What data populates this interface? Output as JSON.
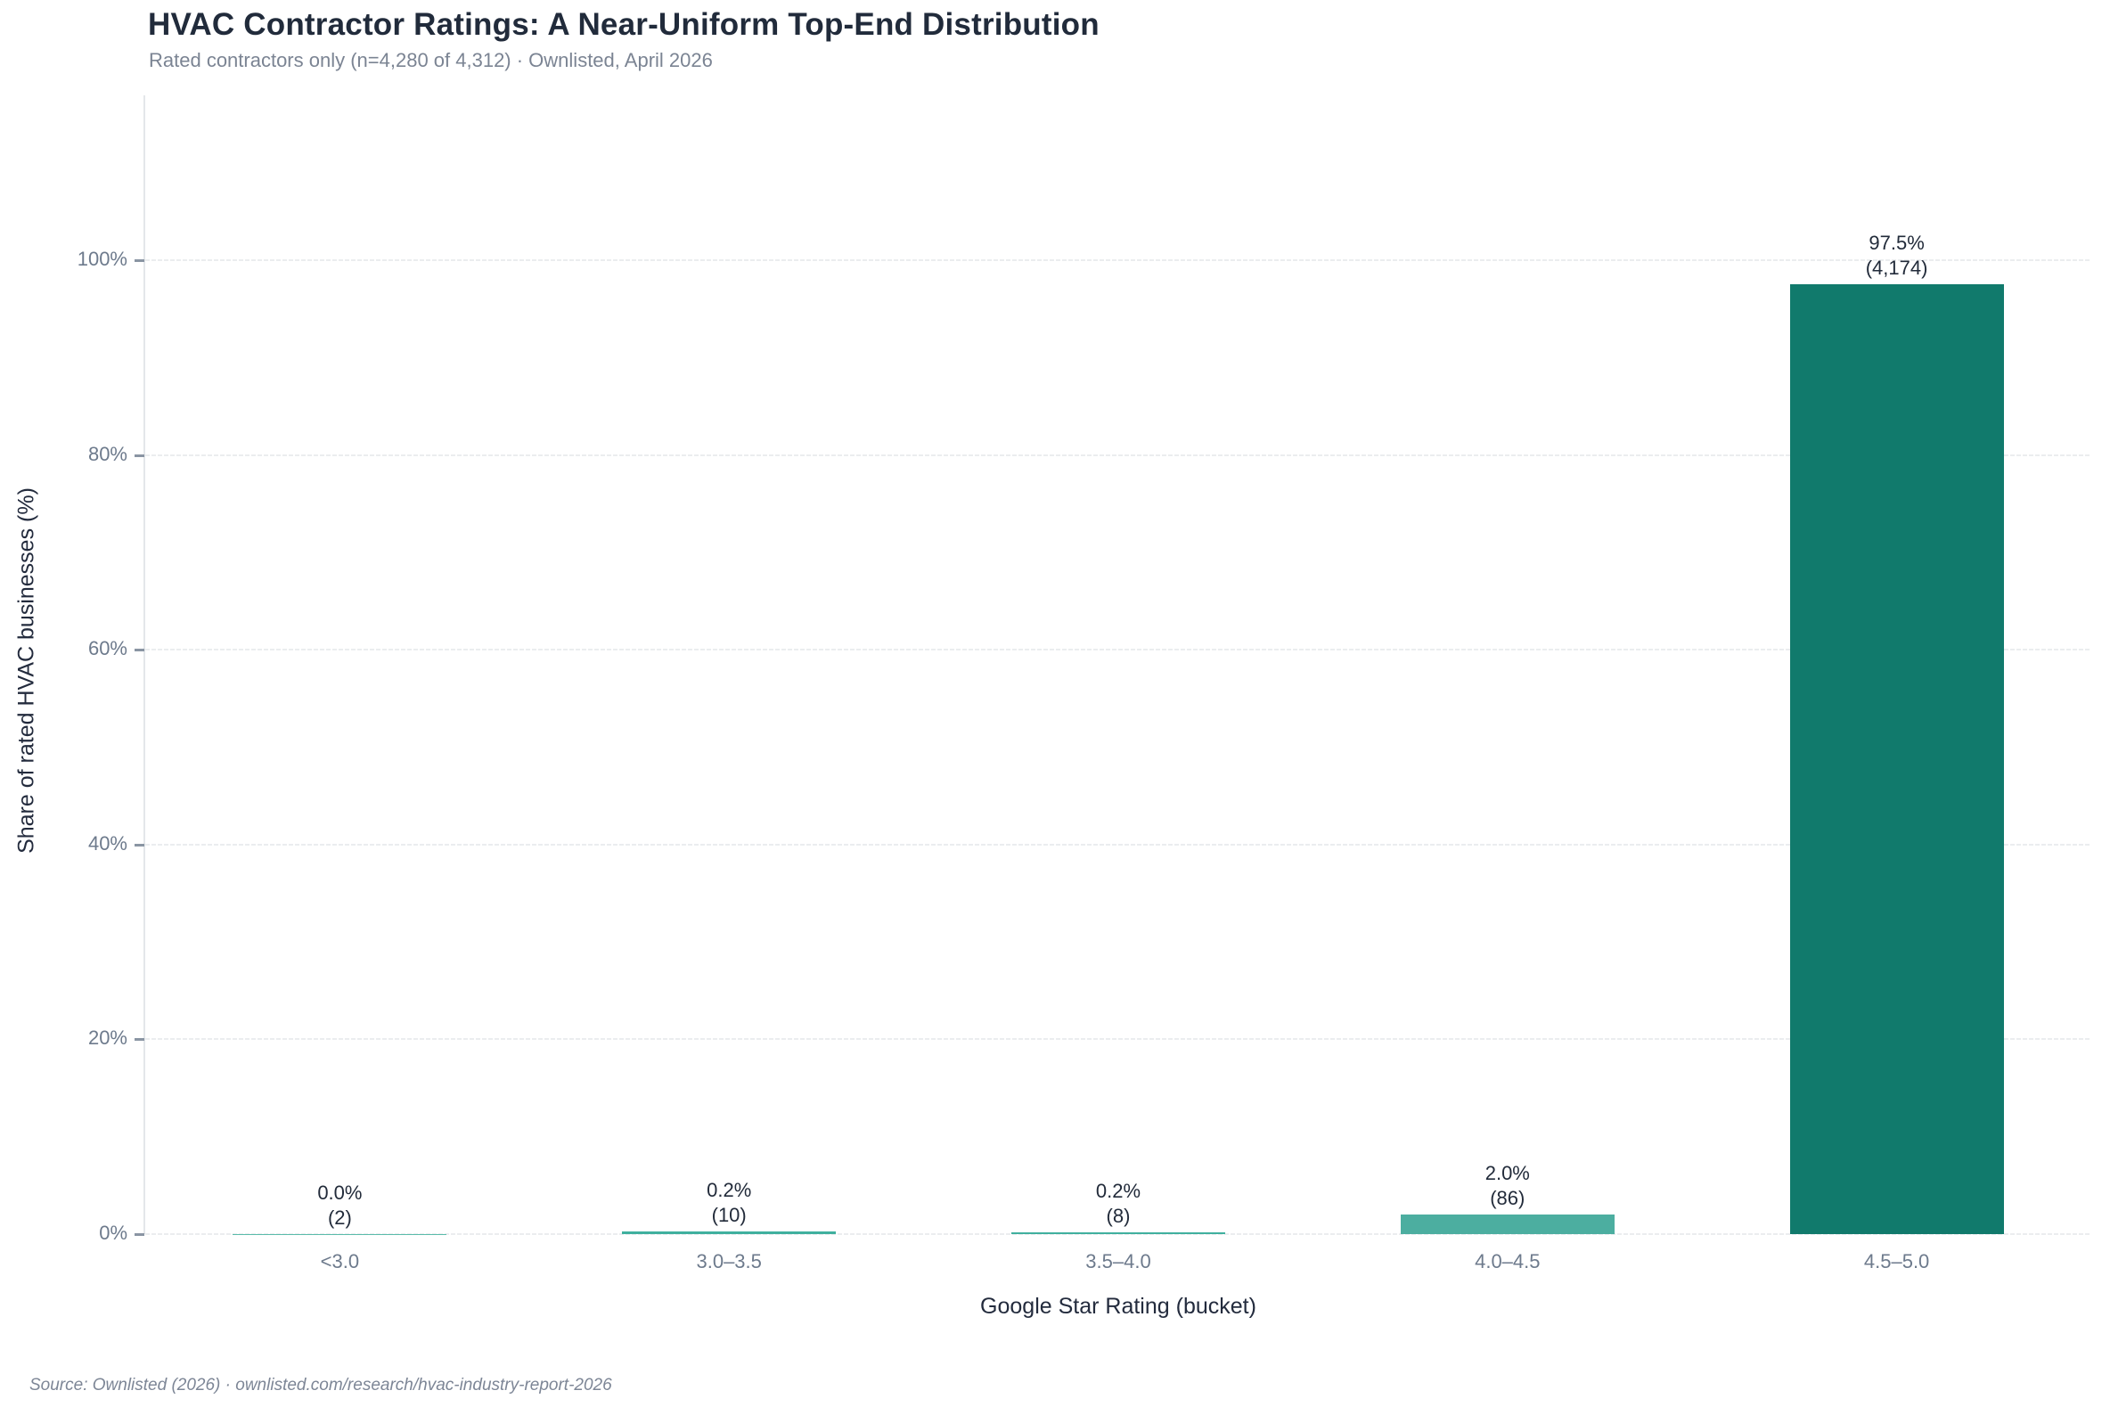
{
  "header": {
    "title": "HVAC Contractor Ratings: A Near-Uniform Top-End Distribution",
    "subtitle": "Rated contractors only (n=4,280 of 4,312) · Ownlisted, April 2026"
  },
  "footer": {
    "source_text": "Source: Ownlisted (2026) · ownlisted.com/research/hvac-industry-report-2026"
  },
  "chart_data": {
    "type": "bar",
    "title": "HVAC Contractor Ratings: A Near-Uniform Top-End Distribution",
    "subtitle": "Rated contractors only (n=4,280 of 4,312) · Ownlisted, April 2026",
    "xlabel": "Google Star Rating (bucket)",
    "ylabel": "Share of rated HVAC businesses (%)",
    "categories": [
      "<3.0",
      "3.0–3.5",
      "3.5–4.0",
      "4.0–4.5",
      "4.5–5.0"
    ],
    "values_pct": [
      0.047,
      0.234,
      0.187,
      2.009,
      97.523
    ],
    "counts": [
      2,
      10,
      8,
      86,
      4174
    ],
    "pct_labels": [
      "0.0%",
      "0.2%",
      "0.2%",
      "2.0%",
      "97.5%"
    ],
    "count_labels": [
      "(2)",
      "(10)",
      "(8)",
      "(86)",
      "(4,174)"
    ],
    "bar_colors": [
      "#5bbcab",
      "#40b09e",
      "#40b09e",
      "#4caea0",
      "#117a6c"
    ],
    "ylim": [
      0,
      100
    ],
    "yticks": [
      0,
      20,
      40,
      60,
      80,
      100
    ],
    "ytick_labels": [
      "0%",
      "20%",
      "40%",
      "60%",
      "80%",
      "100%"
    ],
    "grid": "horizontal dashed",
    "legend": "none",
    "total_rated": "4,280",
    "total_listed": "4,312"
  },
  "colors": {
    "title_text": "#212b3b",
    "subtitle_text": "#7b8493",
    "tick_text": "#6d7a8c",
    "annotation_text": "#222b3a",
    "axis_title_text": "#232b3d",
    "gridline": "#ebedef",
    "axis_line": "#e4e7ea",
    "footer_text": "#7d8696",
    "background": "#ffffff"
  }
}
